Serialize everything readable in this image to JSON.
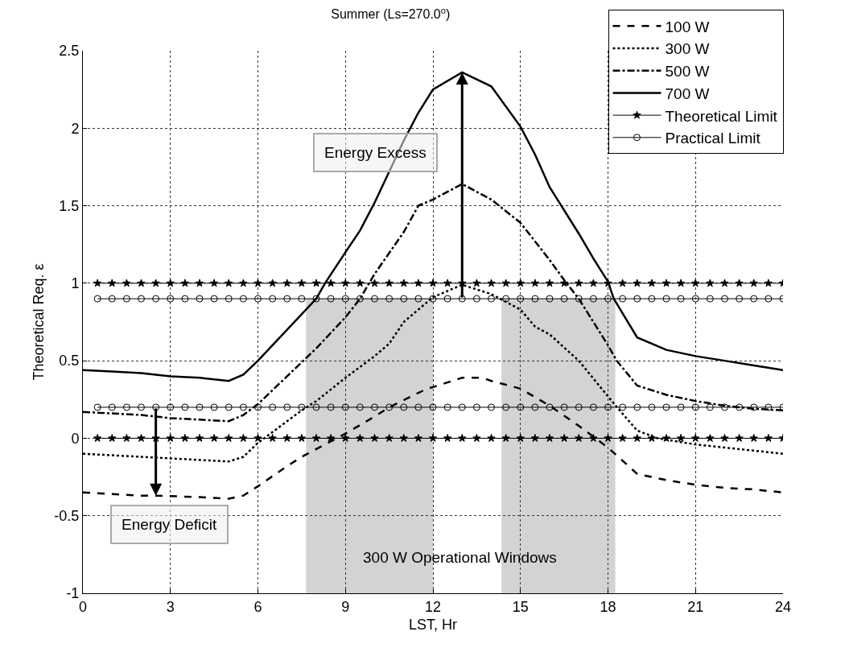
{
  "chart_data": {
    "type": "line",
    "title": "Summer (Ls=270.0$^{o}$)",
    "xlabel": "LST, Hr",
    "ylabel": "Theoretical Req. ε",
    "xlim": [
      0,
      24
    ],
    "xticks": [
      0,
      3,
      6,
      9,
      12,
      15,
      18,
      21,
      24
    ],
    "ylim": [
      -1,
      2.5
    ],
    "yticks": [
      -1,
      -0.5,
      0,
      0.5,
      1,
      1.5,
      2,
      2.5
    ],
    "grid": true,
    "legend": "top right",
    "series": [
      {
        "name": "100 W",
        "color": "#000000",
        "line_style": "dashed",
        "marker": "none",
        "x": [
          0,
          1,
          2,
          2.5,
          4,
          5,
          5.5,
          6,
          7,
          7.5,
          8.7,
          9,
          10,
          10.5,
          11.8,
          12,
          13,
          13.7,
          14,
          15,
          16,
          17,
          18,
          19,
          20,
          21,
          22,
          23,
          24
        ],
        "values": [
          -0.35,
          -0.36,
          -0.37,
          -0.37,
          -0.38,
          -0.39,
          -0.37,
          -0.31,
          -0.18,
          -0.12,
          0,
          0.03,
          0.14,
          0.2,
          0.32,
          0.33,
          0.39,
          0.39,
          0.37,
          0.32,
          0.21,
          0.08,
          -0.06,
          -0.23,
          -0.27,
          -0.3,
          -0.32,
          -0.33,
          -0.35
        ]
      },
      {
        "name": "300 W",
        "color": "#000000",
        "line_style": "dotted",
        "marker": "none",
        "x": [
          0,
          1,
          2,
          3,
          4,
          5,
          5.5,
          6,
          7,
          7.5,
          8,
          9,
          10,
          10.5,
          11,
          12,
          13,
          14,
          14.5,
          15,
          15.5,
          16,
          17,
          18,
          18.4,
          19,
          19.7,
          21,
          22,
          23,
          24
        ],
        "values": [
          -0.1,
          -0.11,
          -0.12,
          -0.13,
          -0.14,
          -0.15,
          -0.12,
          -0.03,
          0.11,
          0.18,
          0.24,
          0.39,
          0.53,
          0.61,
          0.75,
          0.91,
          0.99,
          0.93,
          0.88,
          0.83,
          0.72,
          0.67,
          0.5,
          0.27,
          0.18,
          0.05,
          0,
          -0.04,
          -0.06,
          -0.08,
          -0.1
        ]
      },
      {
        "name": "500 W",
        "color": "#000000",
        "line_style": "dashdot",
        "marker": "none",
        "x": [
          0,
          1,
          2,
          3,
          4,
          5,
          5.5,
          6,
          7,
          7.5,
          8,
          9,
          9.5,
          10,
          11,
          11.5,
          12,
          13,
          14,
          15,
          16,
          16.5,
          17,
          18,
          18.3,
          19,
          20,
          21,
          22,
          23,
          24
        ],
        "values": [
          0.17,
          0.16,
          0.15,
          0.13,
          0.12,
          0.11,
          0.15,
          0.22,
          0.4,
          0.49,
          0.58,
          0.78,
          0.9,
          1.06,
          1.33,
          1.5,
          1.54,
          1.64,
          1.54,
          1.39,
          1.15,
          1.02,
          0.9,
          0.6,
          0.5,
          0.34,
          0.28,
          0.24,
          0.21,
          0.19,
          0.18
        ]
      },
      {
        "name": "700 W",
        "color": "#000000",
        "line_style": "solid",
        "marker": "none",
        "x": [
          0,
          1,
          2,
          3,
          4,
          5,
          5.5,
          6,
          7,
          8,
          8.3,
          9,
          9.5,
          10,
          11,
          11.5,
          12,
          13,
          14,
          15,
          15.5,
          16,
          17,
          17.5,
          18,
          18.2,
          19,
          20,
          21,
          22,
          23,
          24
        ],
        "values": [
          0.44,
          0.43,
          0.42,
          0.4,
          0.39,
          0.37,
          0.41,
          0.5,
          0.7,
          0.9,
          1,
          1.2,
          1.34,
          1.52,
          1.92,
          2.1,
          2.25,
          2.36,
          2.27,
          2.01,
          1.83,
          1.62,
          1.32,
          1.16,
          1.01,
          0.9,
          0.65,
          0.57,
          0.53,
          0.5,
          0.47,
          0.44
        ]
      },
      {
        "name": "Theoretical Limit",
        "color": "#000000",
        "line_style": "solid",
        "marker": "star",
        "x": [
          0.5,
          1,
          1.5,
          2,
          2.5,
          3,
          3.5,
          4,
          4.5,
          5,
          5.5,
          6,
          6.5,
          7,
          7.5,
          8,
          8.5,
          9,
          9.5,
          10,
          10.5,
          11,
          11.5,
          12,
          12.5,
          13,
          13.5,
          14,
          14.5,
          15,
          15.5,
          16,
          16.5,
          17,
          17.5,
          18,
          18.5,
          19,
          19.5,
          20,
          20.5,
          21,
          21.5,
          22,
          22.5,
          23,
          23.5,
          24
        ],
        "values": [
          1,
          1,
          1,
          1,
          1,
          1,
          1,
          1,
          1,
          1,
          1,
          1,
          1,
          1,
          1,
          1,
          1,
          1,
          1,
          1,
          1,
          1,
          1,
          1,
          1,
          1,
          1,
          1,
          1,
          1,
          1,
          1,
          1,
          1,
          1,
          1,
          1,
          1,
          1,
          1,
          1,
          1,
          1,
          1,
          1,
          1,
          1,
          1
        ]
      },
      {
        "color": "#000000",
        "line_style": "solid",
        "marker": "star",
        "x": [
          0.5,
          1,
          1.5,
          2,
          2.5,
          3,
          3.5,
          4,
          4.5,
          5,
          5.5,
          6,
          6.5,
          7,
          7.5,
          8,
          8.5,
          9,
          9.5,
          10,
          10.5,
          11,
          11.5,
          12,
          12.5,
          13,
          13.5,
          14,
          14.5,
          15,
          15.5,
          16,
          16.5,
          17,
          17.5,
          18,
          18.5,
          19,
          19.5,
          20,
          20.5,
          21,
          21.5,
          22,
          22.5,
          23,
          23.5,
          24
        ],
        "values": [
          0,
          0,
          0,
          0,
          0,
          0,
          0,
          0,
          0,
          0,
          0,
          0,
          0,
          0,
          0,
          0,
          0,
          0,
          0,
          0,
          0,
          0,
          0,
          0,
          0,
          0,
          0,
          0,
          0,
          0,
          0,
          0,
          0,
          0,
          0,
          0,
          0,
          0,
          0,
          0,
          0,
          0,
          0,
          0,
          0,
          0,
          0,
          0
        ]
      },
      {
        "name": "Practical Limit",
        "color": "#000000",
        "line_style": "solid",
        "marker": "circle",
        "x": [
          0.5,
          1,
          1.5,
          2,
          2.5,
          3,
          3.5,
          4,
          4.5,
          5,
          5.5,
          6,
          6.5,
          7,
          7.5,
          8,
          8.5,
          9,
          9.5,
          10,
          10.5,
          11,
          11.5,
          12,
          12.5,
          13,
          13.5,
          14,
          14.5,
          15,
          15.5,
          16,
          16.5,
          17,
          17.5,
          18,
          18.5,
          19,
          19.5,
          20,
          20.5,
          21,
          21.5,
          22,
          22.5,
          23,
          23.5,
          24
        ],
        "values": [
          0.9,
          0.9,
          0.9,
          0.9,
          0.9,
          0.9,
          0.9,
          0.9,
          0.9,
          0.9,
          0.9,
          0.9,
          0.9,
          0.9,
          0.9,
          0.9,
          0.9,
          0.9,
          0.9,
          0.9,
          0.9,
          0.9,
          0.9,
          0.9,
          0.9,
          0.9,
          0.9,
          0.9,
          0.9,
          0.9,
          0.9,
          0.9,
          0.9,
          0.9,
          0.9,
          0.9,
          0.9,
          0.9,
          0.9,
          0.9,
          0.9,
          0.9,
          0.9,
          0.9,
          0.9,
          0.9,
          0.9,
          0.9
        ]
      },
      {
        "color": "#000000",
        "line_style": "solid",
        "marker": "circle",
        "x": [
          0.5,
          1,
          1.5,
          2,
          2.5,
          3,
          3.5,
          4,
          4.5,
          5,
          5.5,
          6,
          6.5,
          7,
          7.5,
          8,
          8.5,
          9,
          9.5,
          10,
          10.5,
          11,
          11.5,
          12,
          12.5,
          13,
          13.5,
          14,
          14.5,
          15,
          15.5,
          16,
          16.5,
          17,
          17.5,
          18,
          18.5,
          19,
          19.5,
          20,
          20.5,
          21,
          21.5,
          22,
          22.5,
          23,
          23.5,
          24
        ],
        "values": [
          0.2,
          0.2,
          0.2,
          0.2,
          0.2,
          0.2,
          0.2,
          0.2,
          0.2,
          0.2,
          0.2,
          0.2,
          0.2,
          0.2,
          0.2,
          0.2,
          0.2,
          0.2,
          0.2,
          0.2,
          0.2,
          0.2,
          0.2,
          0.2,
          0.2,
          0.2,
          0.2,
          0.2,
          0.2,
          0.2,
          0.2,
          0.2,
          0.2,
          0.2,
          0.2,
          0.2,
          0.2,
          0.2,
          0.2,
          0.2,
          0.2,
          0.2,
          0.2,
          0.2,
          0.2,
          0.2,
          0.2,
          0.2
        ]
      }
    ],
    "bands": [
      {
        "axis": "x",
        "from": 7.65,
        "to": 12,
        "color": "#d3d3d3"
      },
      {
        "axis": "x",
        "from": 14.35,
        "to": 18.25,
        "color": "#d3d3d3"
      }
    ],
    "annotations": [
      "Energy Excess",
      "Energy Deficit",
      "300 W Operational Windows"
    ]
  }
}
